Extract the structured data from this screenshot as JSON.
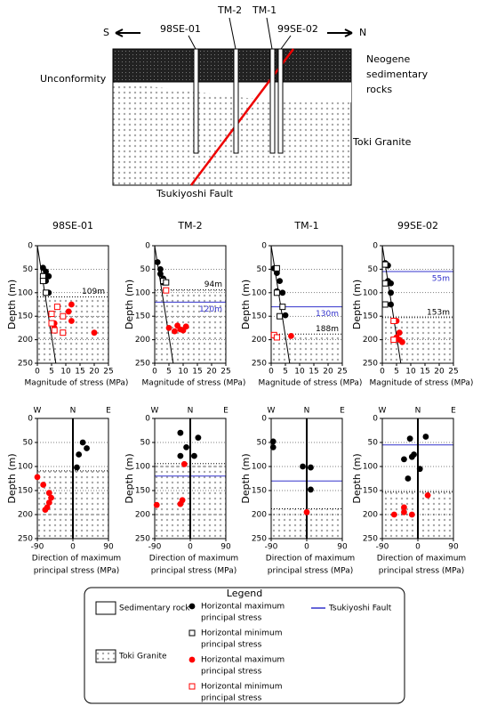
{
  "diagram": {
    "s": "S",
    "n": "N",
    "boreholes": [
      "98SE-01",
      "TM-2",
      "TM-1",
      "99SE-02"
    ],
    "neogene": [
      "Neogene",
      "sedimentary",
      "rocks"
    ],
    "unconformity": "Unconformity",
    "granite": "Toki Granite",
    "fault": "Tsukiyoshi Fault"
  },
  "chart_data": [
    {
      "type": "scatter",
      "title": "98SE-01",
      "xlabel": [
        "Magnitude of stress (MPa)"
      ],
      "ylabel": "Depth (m)",
      "xlim": [
        0,
        25
      ],
      "ylim": [
        0,
        250
      ],
      "y_reversed": true,
      "xticks": [
        0,
        5,
        10,
        15,
        20,
        25
      ],
      "yticks": [
        0,
        50,
        100,
        150,
        200,
        250
      ],
      "grid": true,
      "granite_top": 109,
      "granite_label": "109m",
      "overburden": {
        "x": [
          0,
          6.5
        ],
        "y": [
          0,
          250
        ]
      },
      "series": [
        {
          "marker": "circle",
          "color": "#000000",
          "x": [
            2,
            3,
            4,
            3,
            4
          ],
          "y": [
            47,
            55,
            65,
            75,
            100
          ]
        },
        {
          "marker": "square",
          "color": "#000000",
          "x": [
            2,
            2,
            3
          ],
          "y": [
            65,
            75,
            100
          ]
        },
        {
          "marker": "circle",
          "color": "#ff0000",
          "x": [
            12,
            11,
            12,
            6,
            6,
            20
          ],
          "y": [
            125,
            140,
            160,
            165,
            175,
            185
          ]
        },
        {
          "marker": "square",
          "color": "#ff0000",
          "x": [
            7,
            5,
            9,
            5,
            6,
            9
          ],
          "y": [
            130,
            145,
            150,
            165,
            180,
            185
          ]
        }
      ]
    },
    {
      "type": "scatter",
      "title": "TM-2",
      "xlabel": [
        "Magnitude of stress (MPa)"
      ],
      "ylabel": "Depth (m)",
      "xlim": [
        0,
        25
      ],
      "ylim": [
        0,
        250
      ],
      "y_reversed": true,
      "xticks": [
        0,
        5,
        10,
        15,
        20,
        25
      ],
      "yticks": [
        0,
        50,
        100,
        150,
        200,
        250
      ],
      "grid": true,
      "granite_top": 94,
      "granite_label": "94m",
      "fault_depth": 120,
      "fault_label": "120m",
      "fault_color": "#3333cc",
      "overburden": {
        "x": [
          0,
          6.5
        ],
        "y": [
          0,
          250
        ]
      },
      "series": [
        {
          "marker": "circle",
          "color": "#000000",
          "x": [
            1,
            2,
            2,
            3,
            3
          ],
          "y": [
            35,
            50,
            60,
            70,
            78
          ]
        },
        {
          "marker": "square",
          "color": "#000000",
          "x": [
            3,
            4
          ],
          "y": [
            75,
            78
          ]
        },
        {
          "marker": "circle",
          "color": "#ff0000",
          "x": [
            5,
            8,
            9,
            10,
            11,
            7
          ],
          "y": [
            175,
            170,
            178,
            180,
            172,
            182
          ]
        },
        {
          "marker": "square",
          "color": "#ff0000",
          "x": [
            4
          ],
          "y": [
            95
          ]
        }
      ]
    },
    {
      "type": "scatter",
      "title": "TM-1",
      "xlabel": [
        "Magnitude of stress (MPa)"
      ],
      "ylabel": "Depth (m)",
      "xlim": [
        0,
        25
      ],
      "ylim": [
        0,
        250
      ],
      "y_reversed": true,
      "xticks": [
        0,
        5,
        10,
        15,
        20,
        25
      ],
      "yticks": [
        0,
        50,
        100,
        150,
        200,
        250
      ],
      "grid": true,
      "granite_top": 188,
      "granite_label": "188m",
      "fault_depth": 130,
      "fault_label": "130m",
      "fault_color": "#3333cc",
      "overburden": {
        "x": [
          0,
          6.5
        ],
        "y": [
          0,
          250
        ]
      },
      "series": [
        {
          "marker": "circle",
          "color": "#000000",
          "x": [
            1,
            2,
            3,
            2,
            4,
            5
          ],
          "y": [
            48,
            58,
            75,
            97,
            100,
            148
          ]
        },
        {
          "marker": "square",
          "color": "#000000",
          "x": [
            2,
            2,
            4,
            3
          ],
          "y": [
            48,
            100,
            130,
            150
          ]
        },
        {
          "marker": "circle",
          "color": "#ff0000",
          "x": [
            7
          ],
          "y": [
            192
          ]
        },
        {
          "marker": "square",
          "color": "#ff0000",
          "x": [
            1,
            2
          ],
          "y": [
            190,
            195
          ]
        }
      ]
    },
    {
      "type": "scatter",
      "title": "99SE-02",
      "xlabel": [
        "Magnitude of stress (MPa)"
      ],
      "ylabel": "Depth (m)",
      "xlim": [
        0,
        25
      ],
      "ylim": [
        0,
        250
      ],
      "y_reversed": true,
      "xticks": [
        0,
        5,
        10,
        15,
        20,
        25
      ],
      "yticks": [
        0,
        50,
        100,
        150,
        200,
        250
      ],
      "grid": true,
      "granite_top": 153,
      "granite_label": "153m",
      "fault_depth": 55,
      "fault_label": "55m",
      "fault_color": "#3333cc",
      "overburden": {
        "x": [
          0,
          6.5
        ],
        "y": [
          0,
          250
        ]
      },
      "series": [
        {
          "marker": "circle",
          "color": "#000000",
          "x": [
            1,
            2,
            2,
            3,
            3,
            3
          ],
          "y": [
            37,
            42,
            75,
            80,
            100,
            125
          ]
        },
        {
          "marker": "square",
          "color": "#000000",
          "x": [
            1,
            1,
            1
          ],
          "y": [
            40,
            80,
            125
          ]
        },
        {
          "marker": "circle",
          "color": "#ff0000",
          "x": [
            5,
            6,
            5,
            6,
            7
          ],
          "y": [
            160,
            185,
            195,
            200,
            205
          ]
        },
        {
          "marker": "square",
          "color": "#ff0000",
          "x": [
            4,
            4
          ],
          "y": [
            160,
            200
          ]
        }
      ]
    },
    {
      "type": "scatter",
      "xlabel": [
        "Direction of maximum",
        "principal stress (MPa)"
      ],
      "ylabel": "Depth (m)",
      "top_labels": [
        "W",
        "N",
        "E"
      ],
      "xlim": [
        -90,
        90
      ],
      "ylim": [
        0,
        250
      ],
      "y_reversed": true,
      "xticks": [
        -90,
        0,
        90
      ],
      "yticks": [
        0,
        50,
        100,
        150,
        200,
        250
      ],
      "grid": true,
      "zero_line": true,
      "granite_top": 109,
      "series": [
        {
          "marker": "circle",
          "color": "#000000",
          "x": [
            25,
            35,
            15,
            10
          ],
          "y": [
            50,
            62,
            75,
            102
          ]
        },
        {
          "marker": "circle",
          "color": "#ff0000",
          "x": [
            -90,
            -75,
            -60,
            -55,
            -60,
            -65,
            -70
          ],
          "y": [
            122,
            138,
            155,
            165,
            175,
            185,
            190
          ]
        }
      ]
    },
    {
      "type": "scatter",
      "xlabel": [
        "Direction of maximum",
        "principal stress (MPa)"
      ],
      "ylabel": "Depth (m)",
      "top_labels": [
        "W",
        "N",
        "E"
      ],
      "xlim": [
        -90,
        90
      ],
      "ylim": [
        0,
        250
      ],
      "y_reversed": true,
      "xticks": [
        -90,
        0,
        90
      ],
      "yticks": [
        0,
        50,
        100,
        150,
        200,
        250
      ],
      "grid": true,
      "zero_line": true,
      "granite_top": 94,
      "fault_depth": 120,
      "fault_color": "#3333cc",
      "series": [
        {
          "marker": "circle",
          "color": "#000000",
          "x": [
            -25,
            20,
            -10,
            10,
            -25
          ],
          "y": [
            30,
            40,
            60,
            78,
            78
          ]
        },
        {
          "marker": "circle",
          "color": "#ff0000",
          "x": [
            -15,
            -85,
            -20,
            -25
          ],
          "y": [
            95,
            180,
            170,
            178
          ]
        }
      ]
    },
    {
      "type": "scatter",
      "xlabel": [
        "Direction of maximum",
        "principal stress (MPa)"
      ],
      "ylabel": "Depth (m)",
      "top_labels": [
        "W",
        "N",
        "E"
      ],
      "xlim": [
        -90,
        90
      ],
      "ylim": [
        0,
        250
      ],
      "y_reversed": true,
      "xticks": [
        -90,
        0,
        90
      ],
      "yticks": [
        0,
        50,
        100,
        150,
        200,
        250
      ],
      "grid": true,
      "zero_line": true,
      "granite_top": 188,
      "fault_depth": 130,
      "fault_color": "#3333cc",
      "series": [
        {
          "marker": "circle",
          "color": "#000000",
          "x": [
            -85,
            -85,
            -10,
            10,
            10
          ],
          "y": [
            48,
            60,
            100,
            102,
            148
          ]
        },
        {
          "marker": "circle",
          "color": "#ff0000",
          "x": [
            0
          ],
          "y": [
            195
          ]
        }
      ]
    },
    {
      "type": "scatter",
      "xlabel": [
        "Direction of maximum",
        "principal stress (MPa)"
      ],
      "ylabel": "Depth (m)",
      "top_labels": [
        "W",
        "N",
        "E"
      ],
      "xlim": [
        -90,
        90
      ],
      "ylim": [
        0,
        250
      ],
      "y_reversed": true,
      "xticks": [
        -90,
        0,
        90
      ],
      "yticks": [
        0,
        50,
        100,
        150,
        200,
        250
      ],
      "grid": true,
      "zero_line": true,
      "granite_top": 153,
      "fault_depth": 55,
      "fault_color": "#3333cc",
      "series": [
        {
          "marker": "circle",
          "color": "#000000",
          "x": [
            -20,
            20,
            -35,
            -10,
            -15,
            5,
            -25
          ],
          "y": [
            42,
            38,
            85,
            75,
            80,
            105,
            125
          ]
        },
        {
          "marker": "circle",
          "color": "#ff0000",
          "x": [
            25,
            -35,
            -60,
            -15,
            -35
          ],
          "y": [
            160,
            185,
            200,
            200,
            195
          ]
        }
      ]
    }
  ],
  "legend": {
    "title": "Legend",
    "sedimentary": "Sedimentary rock",
    "granite": "Toki Granite",
    "items": [
      {
        "marker": "circle",
        "color": "#000000",
        "label": [
          "Horizontal maximum",
          "principal stress"
        ]
      },
      {
        "marker": "square",
        "color": "#000000",
        "label": [
          "Horizontal minimum",
          "principal stress"
        ]
      },
      {
        "marker": "circle",
        "color": "#ff0000",
        "label": [
          "Horizontal maximum",
          "principal stress"
        ]
      },
      {
        "marker": "square",
        "color": "#ff0000",
        "label": [
          "Horizontal minimum",
          "principal stress"
        ]
      }
    ],
    "fault": "Tsukiyoshi Fault",
    "fault_color": "#3333cc"
  }
}
